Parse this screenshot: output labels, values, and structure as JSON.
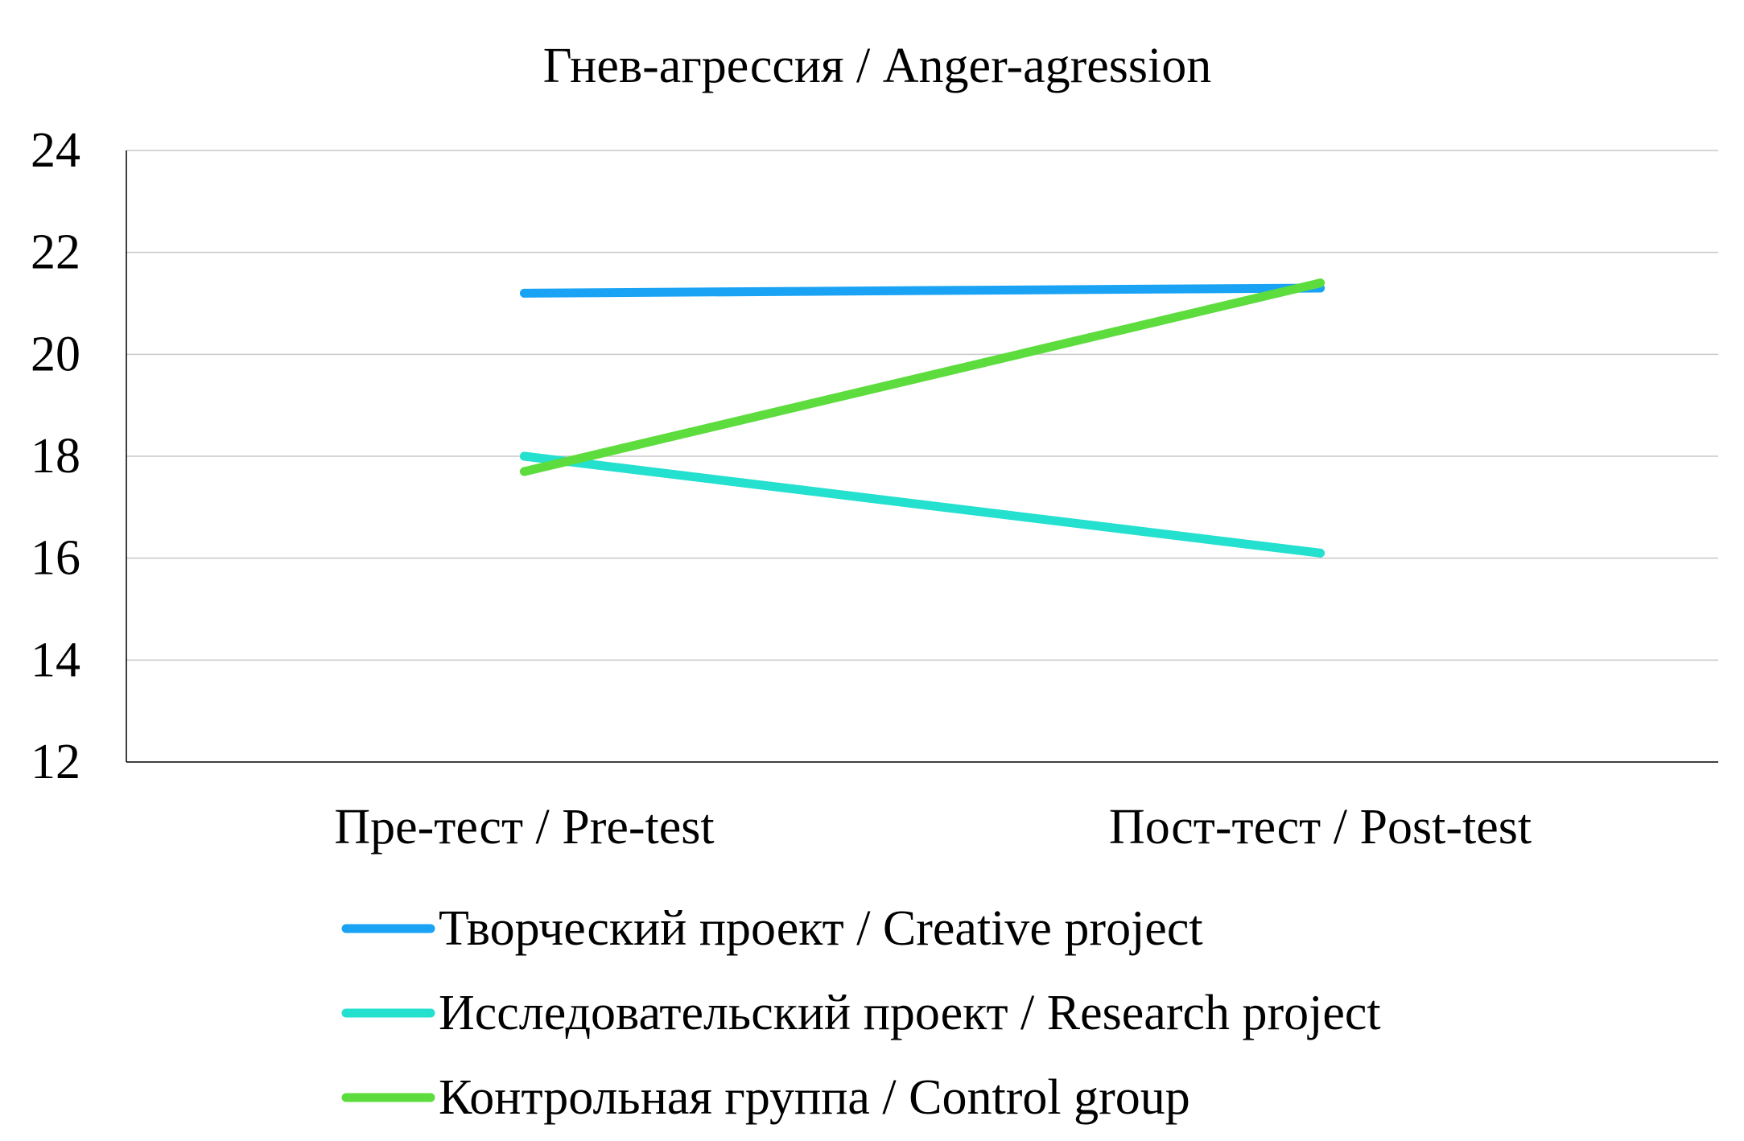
{
  "chart_data": {
    "type": "line",
    "title": "Гнев-агрессия / Anger-agression",
    "xlabel": "",
    "ylabel": "",
    "categories": [
      "Пре-тест / Pre-test",
      "Пост-тест / Post-test"
    ],
    "ylim": [
      12,
      24
    ],
    "yticks": [
      12,
      14,
      16,
      18,
      20,
      22,
      24
    ],
    "grid": true,
    "legend_position": "bottom",
    "series": [
      {
        "name": "Творческий проект / Creative project",
        "values": [
          21.2,
          21.3
        ],
        "color": "#1aa3f5"
      },
      {
        "name": "Исследовательский проект / Research project",
        "values": [
          18.0,
          16.1
        ],
        "color": "#23e0cf"
      },
      {
        "name": "Контрольная группа / Control group",
        "values": [
          17.7,
          21.4
        ],
        "color": "#5ddc3e"
      }
    ]
  }
}
